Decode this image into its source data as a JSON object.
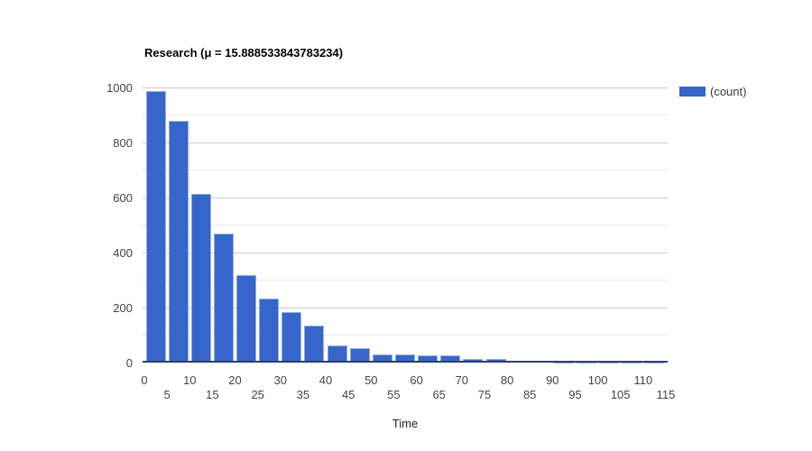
{
  "title": "Research (μ = 15.888533843783234)",
  "legend": {
    "label": "(count)"
  },
  "colors": {
    "bar_fill": "#3666cb",
    "bar_stroke": "#94acdd",
    "baseline": "#2d4169",
    "gridline_major": "#cccccc",
    "gridline_minor": "#ebebeb",
    "tick_text": "#444444"
  },
  "chart_data": {
    "type": "bar",
    "subtype": "histogram",
    "title": "Research (μ = 15.888533843783234)",
    "xlabel": "Time",
    "ylabel": "",
    "legend_entries": [
      "(count)"
    ],
    "legend_position": "right",
    "grid": true,
    "ylim": [
      0,
      1000
    ],
    "y_major_ticks": [
      0,
      200,
      400,
      600,
      800,
      1000
    ],
    "y_minor_step": 100,
    "x_min": 0,
    "x_max": 115,
    "bin_width": 5,
    "x_ticks_row1": [
      0,
      10,
      20,
      30,
      40,
      50,
      60,
      70,
      80,
      90,
      100,
      110
    ],
    "x_ticks_row2": [
      5,
      15,
      25,
      35,
      45,
      55,
      65,
      75,
      85,
      95,
      105,
      115
    ],
    "bin_starts": [
      0,
      5,
      10,
      15,
      20,
      25,
      30,
      35,
      40,
      45,
      50,
      55,
      60,
      65,
      70,
      75,
      80,
      85,
      90,
      95,
      100,
      105,
      110
    ],
    "values": [
      984,
      879,
      611,
      468,
      319,
      234,
      182,
      133,
      61,
      54,
      31,
      28,
      25,
      26,
      12,
      12,
      5,
      2,
      1,
      1,
      1,
      1,
      1
    ],
    "series": [
      {
        "name": "(count)",
        "values": [
          984,
          879,
          611,
          468,
          319,
          234,
          182,
          133,
          61,
          54,
          31,
          28,
          25,
          26,
          12,
          12,
          5,
          2,
          1,
          1,
          1,
          1,
          1
        ]
      }
    ]
  }
}
